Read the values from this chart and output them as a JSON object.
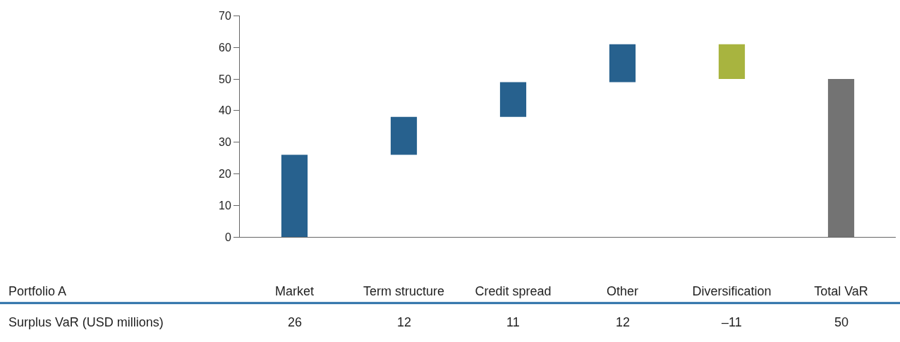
{
  "chart_data": {
    "type": "bar",
    "categories": [
      "Market",
      "Term structure",
      "Credit spread",
      "Other",
      "Diversification",
      "Total VaR"
    ],
    "values": [
      26,
      12,
      11,
      12,
      -11,
      50
    ],
    "base": [
      0,
      26,
      38,
      49,
      61,
      0
    ],
    "colors": [
      "#27618e",
      "#27618e",
      "#27618e",
      "#27618e",
      "#a8b43f",
      "#737373"
    ],
    "value_labels": [
      "26",
      "12",
      "11",
      "12",
      "–11",
      "50"
    ],
    "ylim": [
      0,
      70
    ],
    "yticks": [
      0,
      10,
      20,
      30,
      40,
      50,
      60,
      70
    ],
    "legend": false,
    "annotations": [
      "Portfolio A",
      "Surplus VaR (USD millions)"
    ]
  }
}
